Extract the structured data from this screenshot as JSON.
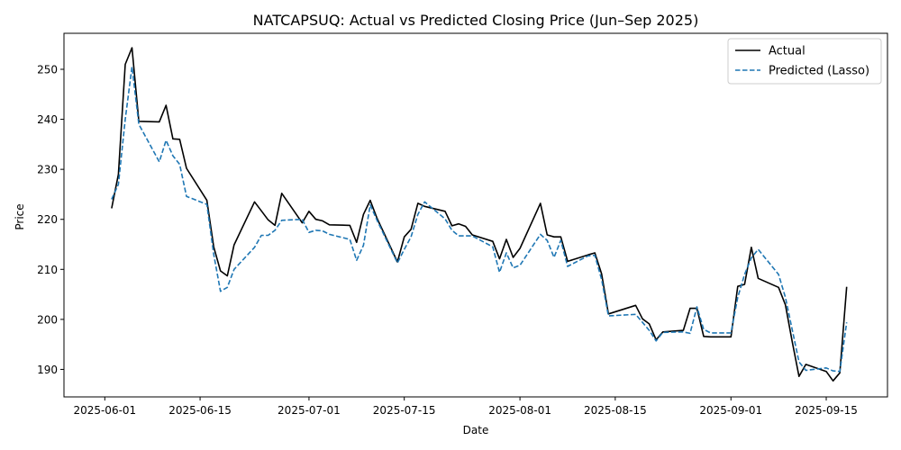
{
  "chart_data": {
    "type": "line",
    "title": "NATCAPSUQ: Actual vs Predicted Closing Price (Jun–Sep 2025)",
    "xlabel": "Date",
    "ylabel": "Price",
    "xlim": [
      "2025-05-26",
      "2025-09-24"
    ],
    "ylim": [
      184.5,
      257.2
    ],
    "x_ticks": [
      "2025-06-01",
      "2025-06-15",
      "2025-07-01",
      "2025-07-15",
      "2025-08-01",
      "2025-08-15",
      "2025-09-01",
      "2025-09-15"
    ],
    "y_ticks": [
      190,
      200,
      210,
      220,
      230,
      240,
      250
    ],
    "grid": false,
    "legend_position": "top-right",
    "series": [
      {
        "name": "Actual",
        "color": "#000000",
        "style": "solid",
        "points": [
          [
            "2025-06-02",
            222.2
          ],
          [
            "2025-06-03",
            229.0
          ],
          [
            "2025-06-04",
            251.0
          ],
          [
            "2025-06-05",
            254.3
          ],
          [
            "2025-06-06",
            239.6
          ],
          [
            "2025-06-09",
            239.5
          ],
          [
            "2025-06-10",
            242.8
          ],
          [
            "2025-06-11",
            236.1
          ],
          [
            "2025-06-12",
            236.0
          ],
          [
            "2025-06-13",
            230.2
          ],
          [
            "2025-06-16",
            223.8
          ],
          [
            "2025-06-17",
            214.5
          ],
          [
            "2025-06-18",
            209.7
          ],
          [
            "2025-06-19",
            208.7
          ],
          [
            "2025-06-20",
            214.9
          ],
          [
            "2025-06-23",
            223.5
          ],
          [
            "2025-06-24",
            221.7
          ],
          [
            "2025-06-25",
            219.9
          ],
          [
            "2025-06-26",
            218.8
          ],
          [
            "2025-06-27",
            225.2
          ],
          [
            "2025-06-30",
            219.3
          ],
          [
            "2025-07-01",
            221.6
          ],
          [
            "2025-07-02",
            220.0
          ],
          [
            "2025-07-03",
            219.7
          ],
          [
            "2025-07-04",
            218.9
          ],
          [
            "2025-07-07",
            218.8
          ],
          [
            "2025-07-08",
            215.4
          ],
          [
            "2025-07-09",
            221.0
          ],
          [
            "2025-07-10",
            223.8
          ],
          [
            "2025-07-11",
            220.2
          ],
          [
            "2025-07-14",
            211.5
          ],
          [
            "2025-07-15",
            216.5
          ],
          [
            "2025-07-16",
            218.0
          ],
          [
            "2025-07-17",
            223.2
          ],
          [
            "2025-07-18",
            222.6
          ],
          [
            "2025-07-21",
            221.6
          ],
          [
            "2025-07-22",
            218.7
          ],
          [
            "2025-07-23",
            219.1
          ],
          [
            "2025-07-24",
            218.6
          ],
          [
            "2025-07-25",
            216.9
          ],
          [
            "2025-07-28",
            215.6
          ],
          [
            "2025-07-29",
            212.1
          ],
          [
            "2025-07-30",
            216.0
          ],
          [
            "2025-07-31",
            212.4
          ],
          [
            "2025-08-01",
            214.2
          ],
          [
            "2025-08-04",
            223.2
          ],
          [
            "2025-08-05",
            216.9
          ],
          [
            "2025-08-06",
            216.5
          ],
          [
            "2025-08-07",
            216.5
          ],
          [
            "2025-08-08",
            211.6
          ],
          [
            "2025-08-11",
            212.9
          ],
          [
            "2025-08-12",
            213.3
          ],
          [
            "2025-08-13",
            209.1
          ],
          [
            "2025-08-14",
            201.1
          ],
          [
            "2025-08-18",
            202.8
          ],
          [
            "2025-08-19",
            200.1
          ],
          [
            "2025-08-20",
            199.1
          ],
          [
            "2025-08-21",
            195.9
          ],
          [
            "2025-08-22",
            197.5
          ],
          [
            "2025-08-25",
            197.8
          ],
          [
            "2025-08-26",
            202.2
          ],
          [
            "2025-08-27",
            202.2
          ],
          [
            "2025-08-28",
            196.6
          ],
          [
            "2025-08-29",
            196.5
          ],
          [
            "2025-09-01",
            196.5
          ],
          [
            "2025-09-02",
            206.6
          ],
          [
            "2025-09-03",
            207.0
          ],
          [
            "2025-09-04",
            214.4
          ],
          [
            "2025-09-05",
            208.2
          ],
          [
            "2025-09-08",
            206.4
          ],
          [
            "2025-09-09",
            202.9
          ],
          [
            "2025-09-10",
            195.6
          ],
          [
            "2025-09-11",
            188.6
          ],
          [
            "2025-09-12",
            191.0
          ],
          [
            "2025-09-15",
            189.6
          ],
          [
            "2025-09-16",
            187.7
          ],
          [
            "2025-09-17",
            189.3
          ],
          [
            "2025-09-18",
            206.5
          ]
        ]
      },
      {
        "name": "Predicted (Lasso)",
        "color": "#1f77b4",
        "style": "dashed",
        "points": [
          [
            "2025-06-02",
            224.0
          ],
          [
            "2025-06-03",
            227.0
          ],
          [
            "2025-06-04",
            240.0
          ],
          [
            "2025-06-05",
            250.5
          ],
          [
            "2025-06-06",
            239.0
          ],
          [
            "2025-06-09",
            231.5
          ],
          [
            "2025-06-10",
            235.8
          ],
          [
            "2025-06-11",
            232.7
          ],
          [
            "2025-06-12",
            231.0
          ],
          [
            "2025-06-13",
            224.6
          ],
          [
            "2025-06-16",
            223.0
          ],
          [
            "2025-06-17",
            213.0
          ],
          [
            "2025-06-18",
            205.6
          ],
          [
            "2025-06-19",
            206.4
          ],
          [
            "2025-06-20",
            210.0
          ],
          [
            "2025-06-23",
            214.4
          ],
          [
            "2025-06-24",
            216.8
          ],
          [
            "2025-06-25",
            216.8
          ],
          [
            "2025-06-26",
            217.8
          ],
          [
            "2025-06-27",
            219.8
          ],
          [
            "2025-06-30",
            220.0
          ],
          [
            "2025-07-01",
            217.4
          ],
          [
            "2025-07-02",
            217.8
          ],
          [
            "2025-07-03",
            217.7
          ],
          [
            "2025-07-04",
            217.0
          ],
          [
            "2025-07-07",
            216.0
          ],
          [
            "2025-07-08",
            211.8
          ],
          [
            "2025-07-09",
            214.8
          ],
          [
            "2025-07-10",
            222.9
          ],
          [
            "2025-07-11",
            219.8
          ],
          [
            "2025-07-14",
            211.3
          ],
          [
            "2025-07-15",
            214.0
          ],
          [
            "2025-07-16",
            216.5
          ],
          [
            "2025-07-17",
            221.0
          ],
          [
            "2025-07-18",
            223.5
          ],
          [
            "2025-07-21",
            220.1
          ],
          [
            "2025-07-22",
            217.8
          ],
          [
            "2025-07-23",
            216.7
          ],
          [
            "2025-07-24",
            216.7
          ],
          [
            "2025-07-25",
            216.7
          ],
          [
            "2025-07-28",
            214.5
          ],
          [
            "2025-07-29",
            209.4
          ],
          [
            "2025-07-30",
            213.3
          ],
          [
            "2025-07-31",
            210.3
          ],
          [
            "2025-08-01",
            210.8
          ],
          [
            "2025-08-04",
            217.0
          ],
          [
            "2025-08-05",
            215.8
          ],
          [
            "2025-08-06",
            212.4
          ],
          [
            "2025-08-07",
            215.8
          ],
          [
            "2025-08-08",
            210.6
          ],
          [
            "2025-08-11",
            212.7
          ],
          [
            "2025-08-12",
            212.8
          ],
          [
            "2025-08-13",
            208.0
          ],
          [
            "2025-08-14",
            200.7
          ],
          [
            "2025-08-18",
            201.0
          ],
          [
            "2025-08-19",
            199.4
          ],
          [
            "2025-08-20",
            197.8
          ],
          [
            "2025-08-21",
            195.7
          ],
          [
            "2025-08-22",
            197.4
          ],
          [
            "2025-08-25",
            197.5
          ],
          [
            "2025-08-26",
            197.2
          ],
          [
            "2025-08-27",
            202.5
          ],
          [
            "2025-08-28",
            198.0
          ],
          [
            "2025-08-29",
            197.3
          ],
          [
            "2025-09-01",
            197.3
          ],
          [
            "2025-09-02",
            204.4
          ],
          [
            "2025-09-03",
            209.0
          ],
          [
            "2025-09-04",
            212.3
          ],
          [
            "2025-09-05",
            214.0
          ],
          [
            "2025-09-08",
            209.0
          ],
          [
            "2025-09-09",
            204.4
          ],
          [
            "2025-09-10",
            198.0
          ],
          [
            "2025-09-11",
            191.5
          ],
          [
            "2025-09-12",
            189.8
          ],
          [
            "2025-09-15",
            190.3
          ],
          [
            "2025-09-16",
            189.7
          ],
          [
            "2025-09-17",
            189.6
          ],
          [
            "2025-09-18",
            199.4
          ]
        ]
      }
    ]
  }
}
